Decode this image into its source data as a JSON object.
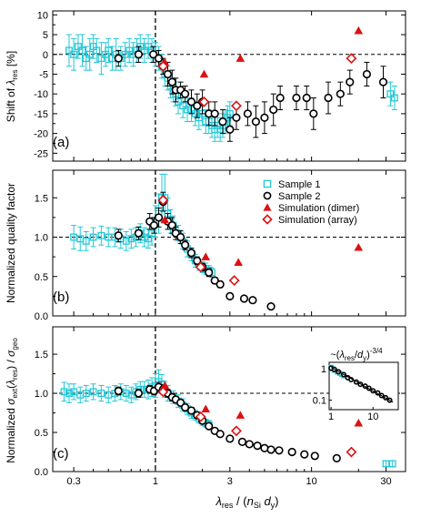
{
  "colors": {
    "sample1": "#22c8d8",
    "sample2": "#000000",
    "dimer": "#dd1111",
    "array": "#dd1111"
  },
  "x_axis": {
    "scale": "log",
    "range": [
      0.22,
      40
    ],
    "ticks": [
      0.3,
      1,
      3,
      10,
      30
    ],
    "tick_labels": [
      "0.3",
      "1",
      "3",
      "10",
      "30"
    ],
    "label": "λres / (nSi dy)",
    "label_parts": {
      "lambda": "λ",
      "res": "res",
      "mid": " / (",
      "n": "n",
      "si": "Si",
      "d": " d",
      "y": "y",
      "close": ")"
    }
  },
  "legend": [
    "Sample 1",
    "Sample 2",
    "Simulation (dimer)",
    "Simulation (array)"
  ],
  "chart_data": [
    {
      "type": "scatter",
      "panel_label": "(a)",
      "ylabel": "Shift of λres [%]",
      "ylabel_parts": {
        "pre": "Shift of ",
        "lambda": "λ",
        "res": "res",
        "post": " [%]"
      },
      "ylim": [
        -27,
        11
      ],
      "yticks": [
        10,
        5,
        0,
        -5,
        -10,
        -15,
        -20,
        -25
      ],
      "ytick_labels": [
        "10",
        "5",
        "0",
        "-5",
        "-10",
        "-15",
        "-20",
        "-25"
      ],
      "reference_hline": 0,
      "reference_vline": 1,
      "series": [
        {
          "name": "Sample 1",
          "marker": "square-open",
          "x": [
            0.28,
            0.3,
            0.32,
            0.34,
            0.36,
            0.38,
            0.4,
            0.42,
            0.45,
            0.48,
            0.5,
            0.53,
            0.56,
            0.6,
            0.64,
            0.68,
            0.72,
            0.76,
            0.8,
            0.85,
            0.9,
            0.95,
            1.0,
            1.05,
            1.1,
            1.15,
            1.2,
            1.25,
            1.3,
            1.35,
            1.4,
            1.5,
            1.6,
            1.7,
            1.8,
            1.9,
            2.0,
            2.1,
            2.2,
            2.3,
            2.4,
            2.5,
            2.6,
            2.7,
            2.8,
            2.9,
            3.0,
            32,
            34
          ],
          "y": [
            1,
            0,
            2,
            1,
            -1,
            0,
            2,
            1,
            -1,
            0,
            1,
            -1,
            0,
            -1,
            0,
            1,
            0,
            1,
            2,
            1,
            2,
            1,
            0,
            -1,
            -3,
            -5,
            -6,
            -8,
            -9,
            -10,
            -12,
            -13,
            -14,
            -14,
            -15,
            -16,
            -15,
            -17,
            -17,
            -18,
            -19,
            -18,
            -19,
            -18,
            -17,
            -16,
            -15,
            -10,
            -11
          ],
          "err": [
            4,
            4,
            3,
            4,
            3,
            4,
            3,
            3,
            4,
            3,
            3,
            3,
            4,
            3,
            3,
            3,
            3,
            3,
            3,
            3,
            3,
            3,
            3,
            3,
            3,
            3,
            3,
            3,
            3,
            3,
            3,
            3,
            3,
            3,
            3,
            3,
            3,
            3,
            3,
            3,
            3,
            3,
            3,
            3,
            3,
            3,
            3,
            3,
            3
          ]
        },
        {
          "name": "Sample 2",
          "marker": "circle-open",
          "x": [
            0.58,
            0.78,
            0.97,
            1.05,
            1.12,
            1.2,
            1.28,
            1.35,
            1.45,
            1.55,
            1.7,
            1.85,
            2.0,
            2.2,
            2.4,
            2.7,
            3.0,
            3.3,
            3.9,
            4.4,
            5.0,
            5.7,
            6.3,
            8.0,
            9.3,
            10.3,
            12.8,
            15.3,
            17.6,
            22.6,
            28.8
          ],
          "y": [
            -1,
            0,
            0,
            -1,
            -3,
            -5,
            -7,
            -9,
            -9,
            -10,
            -12,
            -13,
            -12,
            -15,
            -15,
            -17,
            -19,
            -16,
            -15,
            -17,
            -16,
            -14,
            -11,
            -11,
            -11,
            -15,
            -11,
            -10,
            -7,
            -5,
            -7
          ],
          "err": [
            2,
            2,
            2,
            2,
            2,
            3,
            3,
            3,
            2,
            2,
            3,
            3,
            3,
            3,
            3,
            3,
            3,
            3,
            3,
            4,
            4,
            4,
            3,
            3,
            3,
            4,
            4,
            3,
            3,
            3,
            4
          ]
        },
        {
          "name": "Simulation (dimer)",
          "marker": "triangle-filled",
          "x": [
            1.15,
            2.05,
            3.5,
            20
          ],
          "y": [
            -2,
            -5,
            -1,
            6
          ]
        },
        {
          "name": "Simulation (array)",
          "marker": "diamond-open",
          "x": [
            1.12,
            2.05,
            3.3,
            18
          ],
          "y": [
            -3,
            -12,
            -13,
            -1
          ]
        }
      ]
    },
    {
      "type": "scatter",
      "panel_label": "(b)",
      "ylabel": "Normalized quality factor",
      "ylim": [
        0,
        1.85
      ],
      "yticks": [
        0.0,
        0.5,
        1.0,
        1.5
      ],
      "ytick_labels": [
        "0.0",
        "0.5",
        "1.0",
        "1.5"
      ],
      "reference_hline": 1,
      "reference_vline": 1,
      "series": [
        {
          "name": "Sample 1",
          "marker": "square-open",
          "x": [
            0.3,
            0.33,
            0.36,
            0.4,
            0.45,
            0.5,
            0.55,
            0.6,
            0.65,
            0.7,
            0.75,
            0.8,
            0.85,
            0.9,
            0.95,
            1.0,
            1.05,
            1.1,
            1.15,
            1.2,
            1.25,
            1.3,
            1.4,
            1.5,
            1.6,
            1.7,
            1.8,
            1.9,
            2.0,
            2.1,
            2.2,
            2.3
          ],
          "y": [
            1.0,
            0.98,
            0.95,
            1.0,
            1.02,
            1.0,
            1.0,
            0.98,
            0.95,
            0.98,
            1.0,
            1.05,
            1.0,
            0.98,
            1.05,
            1.2,
            1.3,
            1.5,
            1.5,
            1.3,
            1.2,
            1.15,
            1.05,
            0.95,
            0.85,
            0.78,
            0.7,
            0.65,
            0.62,
            0.6,
            0.58,
            0.55
          ],
          "err": [
            0.15,
            0.15,
            0.12,
            0.12,
            0.12,
            0.12,
            0.12,
            0.12,
            0.12,
            0.12,
            0.12,
            0.12,
            0.12,
            0.12,
            0.15,
            0.2,
            0.25,
            0.3,
            0.3,
            0.2,
            0.15,
            0.12,
            0.1,
            0.1,
            0.1,
            0.08,
            0.08,
            0.07,
            0.07,
            0.07,
            0.06,
            0.06
          ]
        },
        {
          "name": "Sample 2",
          "marker": "circle-open",
          "x": [
            0.58,
            0.78,
            0.92,
            0.98,
            1.05,
            1.12,
            1.2,
            1.28,
            1.35,
            1.45,
            1.55,
            1.7,
            1.85,
            2.0,
            2.2,
            2.4,
            2.6,
            3.0,
            3.7,
            4.2,
            5.5
          ],
          "y": [
            1.02,
            1.05,
            1.2,
            1.15,
            1.25,
            1.45,
            1.2,
            1.15,
            1.05,
            1.0,
            0.9,
            0.8,
            0.7,
            0.62,
            0.55,
            0.45,
            0.4,
            0.25,
            0.22,
            0.2,
            0.12
          ],
          "err": [
            0.08,
            0.08,
            0.1,
            0.1,
            0.12,
            0.12,
            0.1,
            0.1,
            0.08,
            0.08,
            0.06,
            0.06,
            0.05,
            0.05,
            0.05,
            0.04,
            0.04,
            0.03,
            0.03,
            0.03,
            0.03
          ]
        },
        {
          "name": "Simulation (dimer)",
          "marker": "triangle-filled",
          "x": [
            1.15,
            2.1,
            3.4,
            20
          ],
          "y": [
            1.22,
            0.75,
            0.68,
            0.87
          ]
        },
        {
          "name": "Simulation (array)",
          "marker": "diamond-open",
          "x": [
            1.12,
            1.95,
            3.2
          ],
          "y": [
            1.47,
            0.62,
            0.45
          ]
        }
      ]
    },
    {
      "type": "scatter",
      "panel_label": "(c)",
      "ylabel": "Normalized σext(λres) / σgeo",
      "ylabel_parts": {
        "pre": "Normalized ",
        "sigma1": "σ",
        "ext": "ext",
        "mid": "(",
        "lambda": "λ",
        "res": "res",
        "close": ") / ",
        "sigma2": "σ",
        "geo": "geo"
      },
      "ylim": [
        0,
        1.85
      ],
      "yticks": [
        0.0,
        0.5,
        1.0,
        1.5
      ],
      "ytick_labels": [
        "0.0",
        "0.5",
        "1.0",
        "1.5"
      ],
      "reference_hline": 1,
      "reference_vline": 1,
      "series": [
        {
          "name": "Sample 1",
          "marker": "square-open",
          "x": [
            0.26,
            0.28,
            0.3,
            0.33,
            0.36,
            0.4,
            0.45,
            0.5,
            0.55,
            0.6,
            0.65,
            0.7,
            0.75,
            0.8,
            0.85,
            0.9,
            0.95,
            1.0,
            1.05,
            1.1,
            1.15,
            1.2,
            1.3,
            1.4,
            1.5,
            1.6,
            1.7,
            1.8,
            1.9,
            2.0,
            2.1,
            2.2,
            30,
            33
          ],
          "y": [
            1.02,
            1.0,
            1.02,
            0.98,
            1.0,
            1.02,
            1.0,
            0.98,
            1.0,
            1.02,
            1.0,
            0.98,
            1.02,
            1.05,
            1.05,
            1.05,
            1.08,
            1.1,
            1.15,
            1.12,
            1.05,
            1.0,
            0.95,
            0.9,
            0.85,
            0.8,
            0.75,
            0.72,
            0.68,
            0.65,
            0.62,
            0.6,
            0.1,
            0.1
          ],
          "err": [
            0.12,
            0.12,
            0.1,
            0.1,
            0.1,
            0.1,
            0.1,
            0.1,
            0.1,
            0.1,
            0.1,
            0.1,
            0.1,
            0.1,
            0.1,
            0.12,
            0.12,
            0.15,
            0.15,
            0.12,
            0.1,
            0.1,
            0.08,
            0.08,
            0.08,
            0.07,
            0.07,
            0.06,
            0.06,
            0.06,
            0.05,
            0.05,
            0.04,
            0.04
          ]
        },
        {
          "name": "Sample 2",
          "marker": "circle-open",
          "x": [
            0.58,
            0.78,
            0.92,
            0.98,
            1.05,
            1.12,
            1.2,
            1.28,
            1.35,
            1.45,
            1.55,
            1.7,
            1.85,
            2.0,
            2.2,
            2.4,
            2.6,
            3.0,
            3.6,
            4.0,
            4.5,
            5.0,
            5.5,
            6.2,
            7.5,
            9.0,
            10.5,
            14.5
          ],
          "y": [
            1.03,
            1.0,
            1.05,
            1.03,
            1.08,
            1.05,
            1.0,
            0.95,
            0.92,
            0.88,
            0.82,
            0.78,
            0.72,
            0.65,
            0.58,
            0.52,
            0.48,
            0.42,
            0.38,
            0.35,
            0.33,
            0.3,
            0.28,
            0.27,
            0.25,
            0.22,
            0.2,
            0.17
          ],
          "err": [
            0.05,
            0.05,
            0.05,
            0.05,
            0.06,
            0.06,
            0.05,
            0.05,
            0.04,
            0.04,
            0.04,
            0.04,
            0.04,
            0.03,
            0.03,
            0.03,
            0.03,
            0.03,
            0.03,
            0.03,
            0.03,
            0.03,
            0.03,
            0.03,
            0.03,
            0.03,
            0.03,
            0.03
          ]
        },
        {
          "name": "Simulation (dimer)",
          "marker": "triangle-filled",
          "x": [
            1.15,
            2.1,
            3.5,
            20
          ],
          "y": [
            1.1,
            0.8,
            0.72,
            0.62
          ]
        },
        {
          "name": "Simulation (array)",
          "marker": "diamond-open",
          "x": [
            1.12,
            1.95,
            3.3,
            18
          ],
          "y": [
            1.02,
            0.7,
            0.52,
            0.25
          ]
        }
      ]
    },
    {
      "type": "scatter",
      "role": "inset",
      "annotation": "~(λres/dy)-3/4",
      "annotation_parts": {
        "tilde": "~(",
        "lambda": "λ",
        "res": "res",
        "slash": "/",
        "d": "d",
        "y": "y",
        "close": ")",
        "exp": "-3/4"
      },
      "x_scale": "log",
      "y_scale": "log",
      "xlim": [
        0.9,
        40
      ],
      "ylim": [
        0.05,
        1.6
      ],
      "xticks": [
        1,
        10
      ],
      "xtick_labels": [
        "1",
        "10"
      ],
      "yticks": [
        1,
        0.1
      ],
      "ytick_labels": [
        "1",
        "0.1"
      ],
      "series": [
        {
          "name": "Sample 1",
          "marker": "square-open",
          "x": [
            1.0,
            1.1,
            1.2,
            1.4,
            1.6,
            1.8,
            2.0
          ],
          "y": [
            1.1,
            1.0,
            0.9,
            0.8,
            0.72,
            0.66,
            0.6
          ]
        },
        {
          "name": "Sample 2",
          "marker": "circle-open",
          "x": [
            1.0,
            1.2,
            1.5,
            2.0,
            2.5,
            3.0,
            4.0,
            5.0,
            6.5,
            8.0,
            10,
            13,
            16,
            20,
            25
          ],
          "y": [
            1.05,
            0.95,
            0.8,
            0.65,
            0.52,
            0.45,
            0.38,
            0.32,
            0.28,
            0.24,
            0.2,
            0.17,
            0.14,
            0.12,
            0.1
          ]
        },
        {
          "name": "fit",
          "line": true,
          "x": [
            1.0,
            30.0
          ],
          "y": [
            1.1,
            0.086
          ]
        }
      ]
    }
  ]
}
